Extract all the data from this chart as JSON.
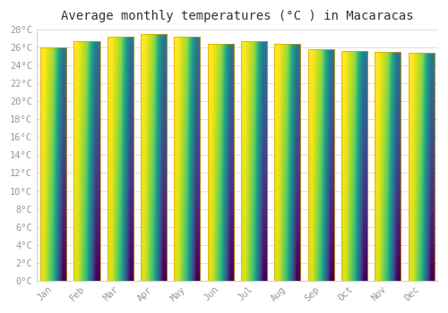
{
  "title": "Average monthly temperatures (°C ) in Macaracas",
  "months": [
    "Jan",
    "Feb",
    "Mar",
    "Apr",
    "May",
    "Jun",
    "Jul",
    "Aug",
    "Sep",
    "Oct",
    "Nov",
    "Dec"
  ],
  "values": [
    26.0,
    26.7,
    27.2,
    27.5,
    27.2,
    26.4,
    26.7,
    26.4,
    25.8,
    25.6,
    25.5,
    25.4
  ],
  "bar_color_top": "#FFD966",
  "bar_color_bottom": "#F0A500",
  "ylim": [
    0,
    28
  ],
  "ytick_step": 2,
  "background_color": "#ffffff",
  "plot_bg_color": "#ffffff",
  "grid_color": "#dddddd",
  "title_fontsize": 10,
  "tick_fontsize": 7.5,
  "font_family": "monospace",
  "tick_color": "#999999",
  "title_color": "#333333",
  "bar_width": 0.78,
  "bar_edge_color": "#E8A000",
  "bar_edge_width": 0.5
}
